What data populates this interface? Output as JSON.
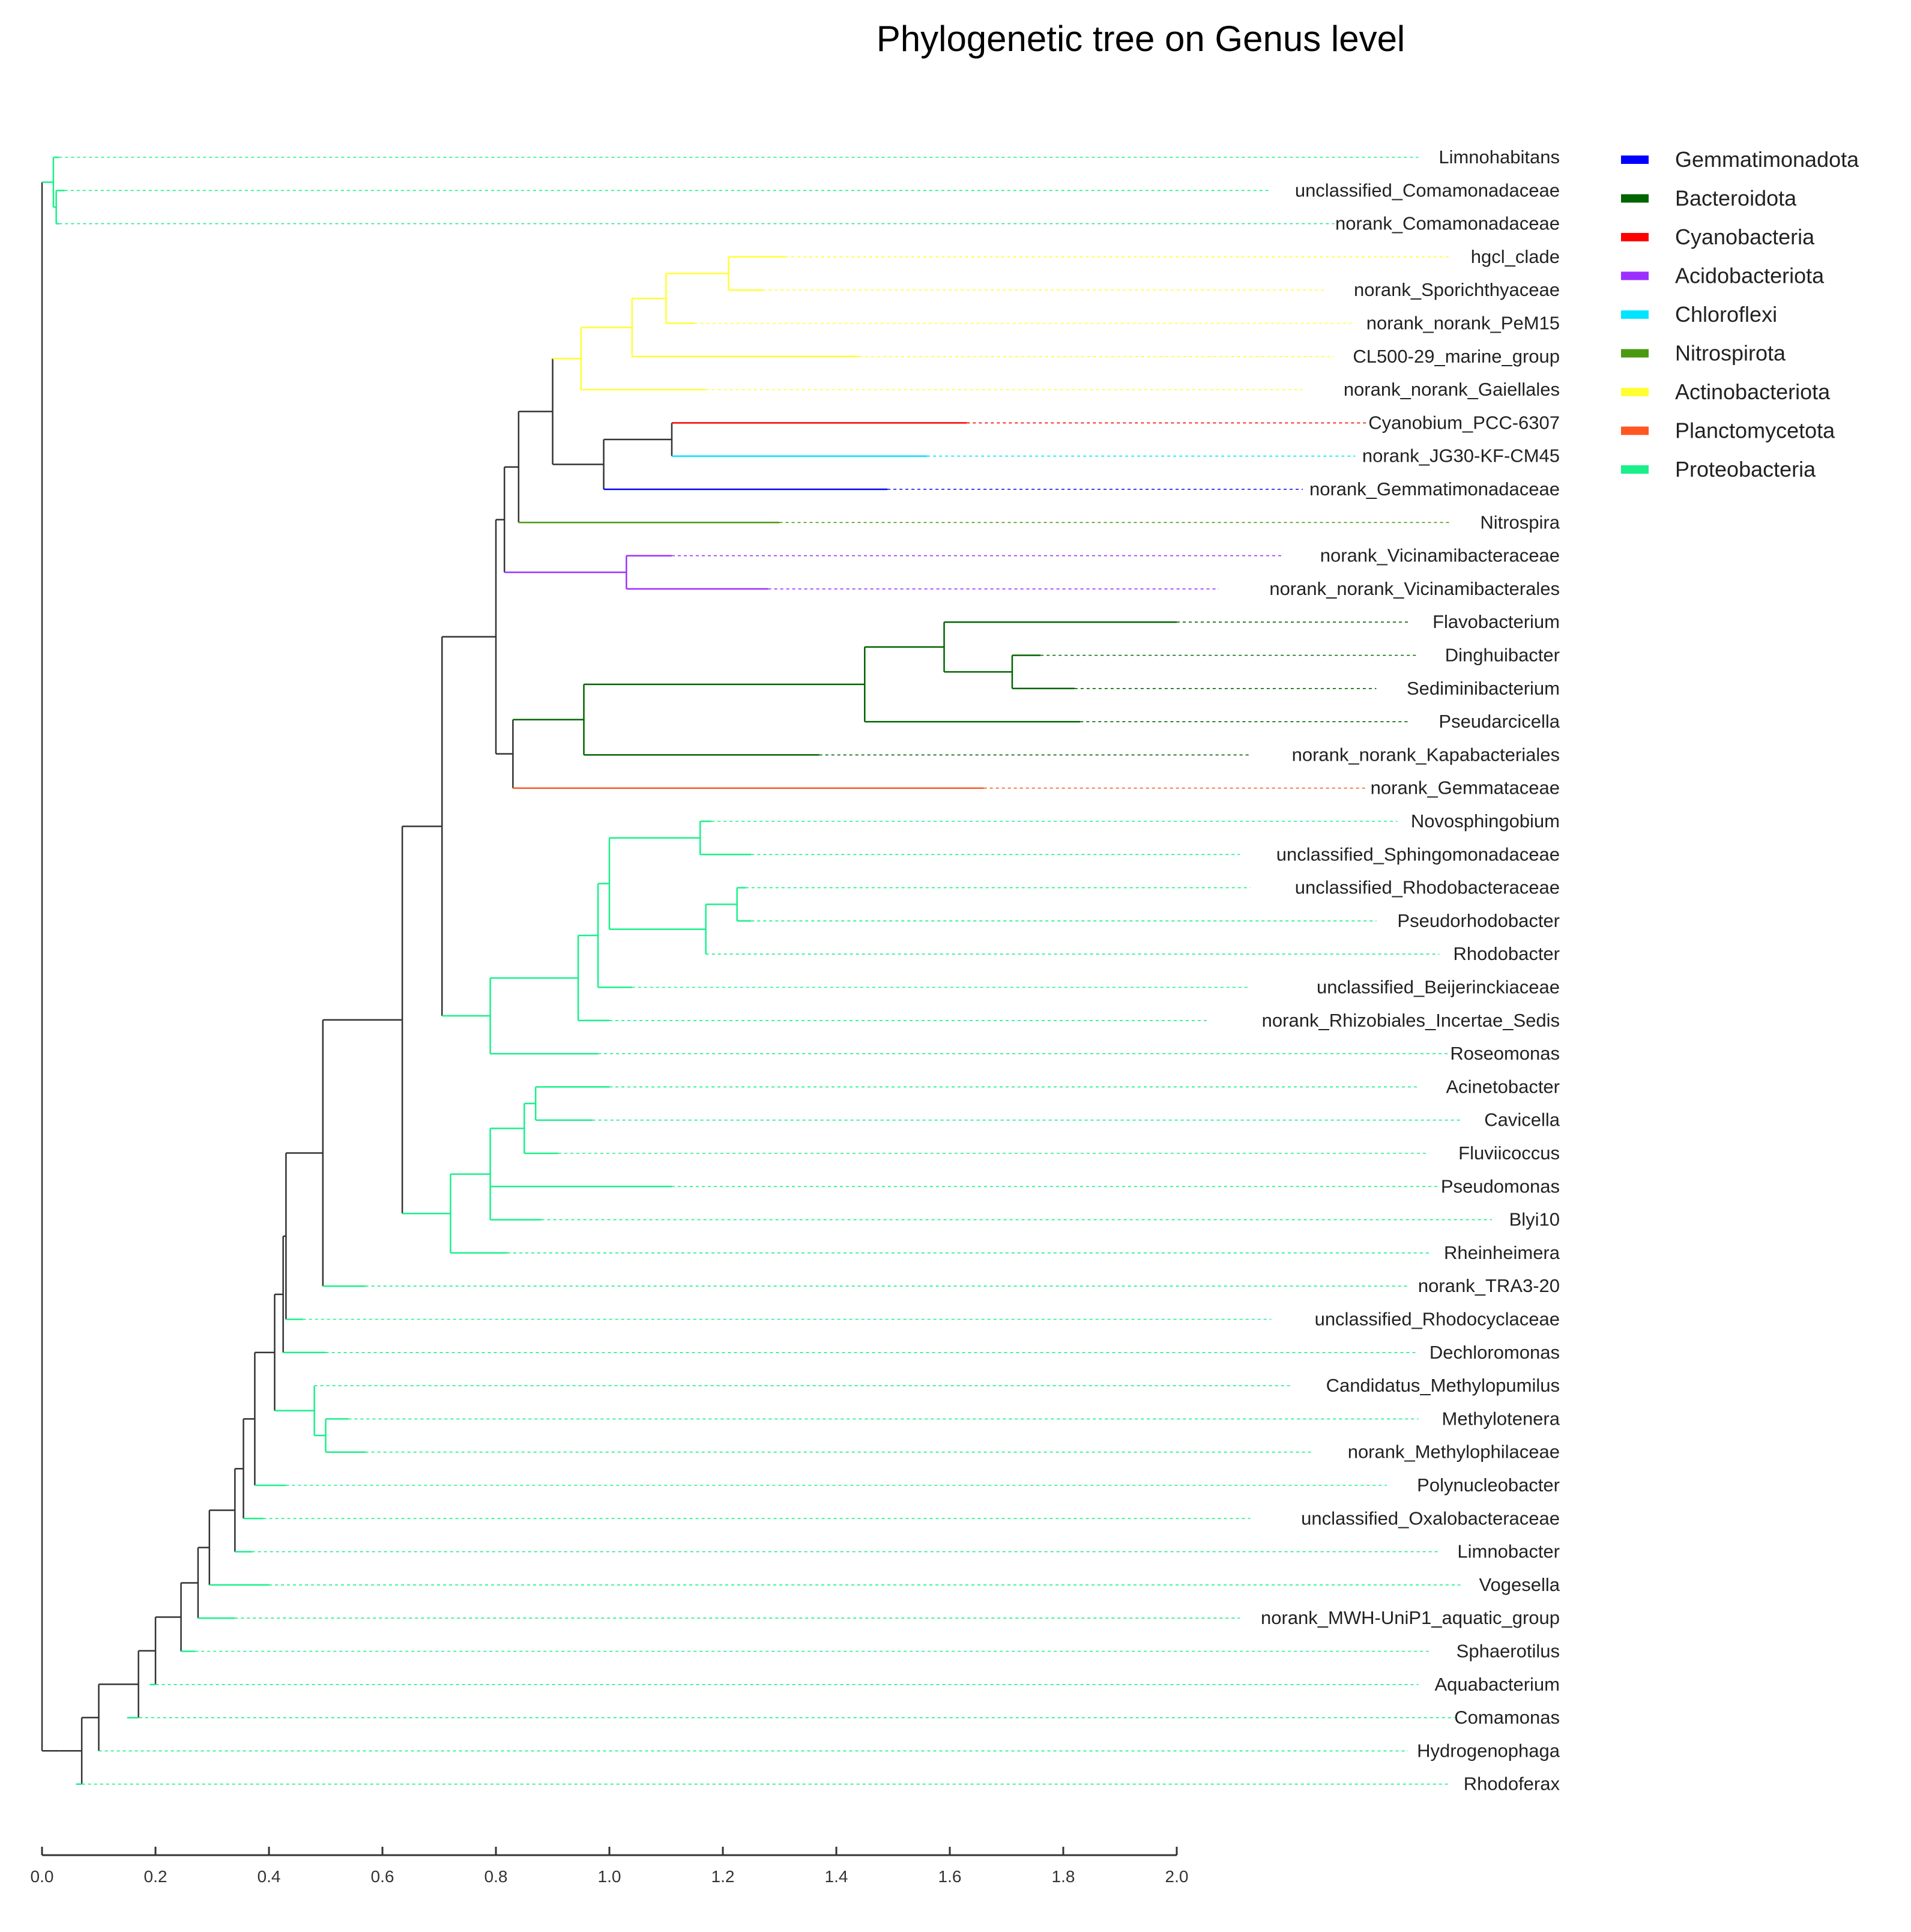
{
  "title": "Phylogenetic tree on Genus level",
  "phyla": [
    {
      "name": "Gemmatimonadota",
      "color": "#0000ff"
    },
    {
      "name": "Bacteroidota",
      "color": "#006400"
    },
    {
      "name": "Cyanobacteria",
      "color": "#ff0000"
    },
    {
      "name": "Acidobacteriota",
      "color": "#9b30ff"
    },
    {
      "name": "Chloroflexi",
      "color": "#00e5ff"
    },
    {
      "name": "Nitrospirota",
      "color": "#4a9a10"
    },
    {
      "name": "Actinobacteriota",
      "color": "#ffff33"
    },
    {
      "name": "Planctomycetota",
      "color": "#ff5722"
    },
    {
      "name": "Proteobacteria",
      "color": "#19f08a"
    }
  ],
  "axis": {
    "min": 0,
    "max": 2.0,
    "ticks": [
      "0.0",
      "0.2",
      "0.4",
      "0.6",
      "0.8",
      "1.0",
      "1.2",
      "1.4",
      "1.6",
      "1.8",
      "2.0"
    ]
  },
  "tips": [
    {
      "label": "Limnohabitans",
      "phylum": "Proteobacteria",
      "branch_end": 0.03
    },
    {
      "label": "unclassified_Comamonadaceae",
      "phylum": "Proteobacteria",
      "branch_end": 0.04
    },
    {
      "label": "norank_Comamonadaceae",
      "phylum": "Proteobacteria",
      "branch_end": 0.03
    },
    {
      "label": "hgcl_clade",
      "phylum": "Actinobacteriota",
      "branch_end": 1.31
    },
    {
      "label": "norank_Sporichthyaceae",
      "phylum": "Actinobacteriota",
      "branch_end": 1.27
    },
    {
      "label": "norank_norank_PeM15",
      "phylum": "Actinobacteriota",
      "branch_end": 1.15
    },
    {
      "label": "CL500-29_marine_group",
      "phylum": "Actinobacteriota",
      "branch_end": 1.44
    },
    {
      "label": "norank_norank_Gaiellales",
      "phylum": "Actinobacteriota",
      "branch_end": 1.17
    },
    {
      "label": "Cyanobium_PCC-6307",
      "phylum": "Cyanobacteria",
      "branch_end": 1.63
    },
    {
      "label": "norank_JG30-KF-CM45",
      "phylum": "Chloroflexi",
      "branch_end": 1.56
    },
    {
      "label": "norank_Gemmatimonadaceae",
      "phylum": "Gemmatimonadota",
      "branch_end": 1.49
    },
    {
      "label": "Nitrospira",
      "phylum": "Nitrospirota",
      "branch_end": 1.3
    },
    {
      "label": "norank_Vicinamibacteraceae",
      "phylum": "Acidobacteriota",
      "branch_end": 1.11
    },
    {
      "label": "norank_norank_Vicinamibacterales",
      "phylum": "Acidobacteriota",
      "branch_end": 1.28
    },
    {
      "label": "Flavobacterium",
      "phylum": "Bacteroidota",
      "branch_end": 2.0
    },
    {
      "label": "Dinghuibacter",
      "phylum": "Bacteroidota",
      "branch_end": 1.76
    },
    {
      "label": "Sediminibacterium",
      "phylum": "Bacteroidota",
      "branch_end": 1.82
    },
    {
      "label": "Pseudarcicella",
      "phylum": "Bacteroidota",
      "branch_end": 1.83
    },
    {
      "label": "norank_norank_Kapabacteriales",
      "phylum": "Bacteroidota",
      "branch_end": 1.37
    },
    {
      "label": "norank_Gemmataceae",
      "phylum": "Planctomycetota",
      "branch_end": 1.66
    },
    {
      "label": "Novosphingobium",
      "phylum": "Proteobacteria",
      "branch_end": 1.18
    },
    {
      "label": "unclassified_Sphingomonadaceae",
      "phylum": "Proteobacteria",
      "branch_end": 1.25
    },
    {
      "label": "unclassified_Rhodobacteraceae",
      "phylum": "Proteobacteria",
      "branch_end": 1.24
    },
    {
      "label": "Pseudorhodobacter",
      "phylum": "Proteobacteria",
      "branch_end": 1.25
    },
    {
      "label": "Rhodobacter",
      "phylum": "Proteobacteria",
      "branch_end": 1.17
    },
    {
      "label": "unclassified_Beijerinckiaceae",
      "phylum": "Proteobacteria",
      "branch_end": 1.04
    },
    {
      "label": "norank_Rhizobiales_Incertae_Sedis",
      "phylum": "Proteobacteria",
      "branch_end": 1.0
    },
    {
      "label": "Roseomonas",
      "phylum": "Proteobacteria",
      "branch_end": 0.98
    },
    {
      "label": "Acinetobacter",
      "phylum": "Proteobacteria",
      "branch_end": 1.0
    },
    {
      "label": "Cavicella",
      "phylum": "Proteobacteria",
      "branch_end": 0.97
    },
    {
      "label": "Fluviicoccus",
      "phylum": "Proteobacteria",
      "branch_end": 0.91
    },
    {
      "label": "Pseudomonas",
      "phylum": "Proteobacteria",
      "branch_end": 1.11
    },
    {
      "label": "Blyi10",
      "phylum": "Proteobacteria",
      "branch_end": 0.88
    },
    {
      "label": "Rheinheimera",
      "phylum": "Proteobacteria",
      "branch_end": 0.82
    },
    {
      "label": "norank_TRA3-20",
      "phylum": "Proteobacteria",
      "branch_end": 0.57
    },
    {
      "label": "unclassified_Rhodocyclaceae",
      "phylum": "Proteobacteria",
      "branch_end": 0.46
    },
    {
      "label": "Dechloromonas",
      "phylum": "Proteobacteria",
      "branch_end": 0.5
    },
    {
      "label": "Candidatus_Methylopumilus",
      "phylum": "Proteobacteria",
      "branch_end": 0.48
    },
    {
      "label": "Methylotenera",
      "phylum": "Proteobacteria",
      "branch_end": 0.54
    },
    {
      "label": "norank_Methylophilaceae",
      "phylum": "Proteobacteria",
      "branch_end": 0.57
    },
    {
      "label": "Polynucleobacter",
      "phylum": "Proteobacteria",
      "branch_end": 0.43
    },
    {
      "label": "unclassified_Oxalobacteraceae",
      "phylum": "Proteobacteria",
      "branch_end": 0.39
    },
    {
      "label": "Limnobacter",
      "phylum": "Proteobacteria",
      "branch_end": 0.37
    },
    {
      "label": "Vogesella",
      "phylum": "Proteobacteria",
      "branch_end": 0.4
    },
    {
      "label": "norank_MWH-UniP1_aquatic_group",
      "phylum": "Proteobacteria",
      "branch_end": 0.34
    },
    {
      "label": "Sphaerotilus",
      "phylum": "Proteobacteria",
      "branch_end": 0.27
    },
    {
      "label": "Aquabacterium",
      "phylum": "Proteobacteria",
      "branch_end": 0.19
    },
    {
      "label": "Comamonas",
      "phylum": "Proteobacteria",
      "branch_end": 0.15
    },
    {
      "label": "Hydrogenophaga",
      "phylum": "Proteobacteria",
      "branch_end": 0.1
    },
    {
      "label": "Rhodoferax",
      "phylum": "Proteobacteria",
      "branch_end": 0.06
    }
  ]
}
